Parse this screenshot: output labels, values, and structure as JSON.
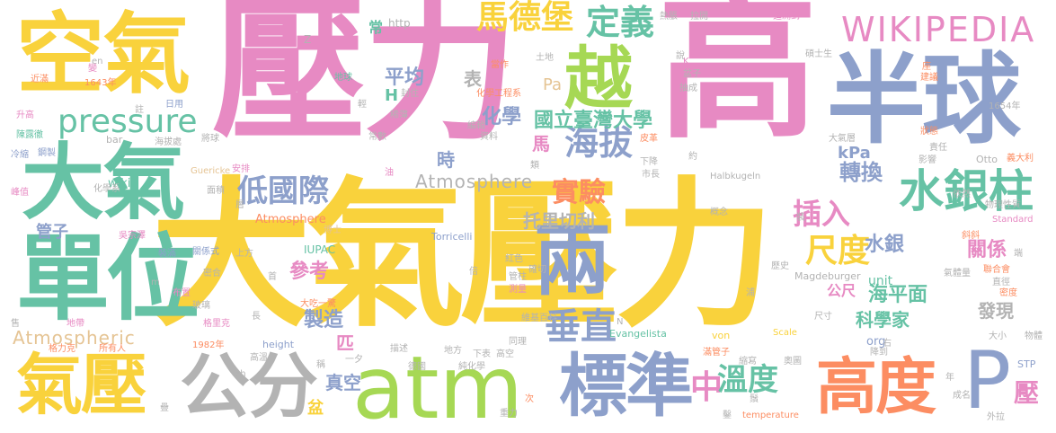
{
  "palette": {
    "yellow": "#f9d23c",
    "pink": "#e78ac3",
    "green": "#66c2a5",
    "blue": "#8da0cb",
    "gray": "#b3b3b3",
    "lime": "#a6d854",
    "orange": "#fc8d62",
    "tan": "#e5c494"
  },
  "words": {
    "w_daqiyali": "大氣壓力",
    "w_yali": "壓力",
    "w_gao": "高",
    "w_kongqi": "空氣",
    "w_banqiu": "半球",
    "w_yue": "越",
    "w_daqi": "大氣",
    "w_danwei": "單位",
    "w_qiya": "氣壓",
    "w_gongfen": "公分",
    "w_atm": "atm",
    "w_biaozhun": "標準",
    "w_gaodu": "高度",
    "w_P": "P",
    "w_liang": "兩",
    "w_shuiyinzhu": "水銀柱",
    "w_wikipedia": "WIKIPEDIA",
    "w_pressure": "pressure",
    "w_madebao": "馬德堡",
    "w_dingyi": "定義",
    "w_haiba": "海拔",
    "w_diguoji": "低國際",
    "w_chuizhi": "垂直",
    "w_wendu": "溫度",
    "w_zhong": "中",
    "w_chidu": "尺度",
    "w_shiyan": "實驗",
    "w_charu": "插入",
    "w_zhuanhuan": "轉換",
    "w_ntu": "國立臺灣大學",
    "w_huaxue": "化學",
    "w_pingjun": "平均",
    "w_atmos1": "Atmosphere",
    "w_atmos2": "Atmospheric",
    "w_atmos3": "Atmosphere",
    "w_torricelli": "托里切利",
    "w_cankao": "參考",
    "w_guanzi": "管子",
    "w_shuiyin": "水銀",
    "w_guanxi": "關係",
    "w_gongchi": "公尺",
    "w_haipingmian": "海平面",
    "w_kexuejia": "科學家",
    "w_faxian": "發現",
    "w_zhizao": "製造",
    "w_zhenkong": "真空",
    "w_ya": "壓",
    "w_kpa": "kPa",
    "w_pa": "Pa",
    "w_biao": "表",
    "w_shi": "時",
    "w_ma": "馬",
    "w_H": "H",
    "w_chang": "常",
    "w_http": "http",
    "w_unit": "unit",
    "w_org": "org",
    "w_pi": "匹",
    "w_pen": "盆",
    "w_iupac": "IUPAC",
    "w_torr": "Torricelli",
    "w_magd": "Magdeburger",
    "w_evang": "Evangelista",
    "w_height": "height",
    "w_temp": "temperature",
    "w_scale": "Scale",
    "w_von": "von",
    "w_halb": "Halbkugeln",
    "w_otto": "Otto",
    "w_guericke": "Guericke",
    "w_standard": "Standard",
    "w_stp": "STP",
    "w_wiki": "wiki",
    "w_bar": "bar",
    "w_z": "Z",
    "w_en": "en",
    "w_zh": "zh",
    "w_n": "N",
    "w_m": "m",
    "w_k": "K",
    "w_1643": "1643年",
    "w_1654": "1654年",
    "w_1982": "1982年",
    "s1": "近滿",
    "s2": "變",
    "s3": "升高",
    "s4": "陳露徹",
    "s5": "冷縮",
    "s6": "鋼製",
    "s7": "註",
    "s8": "日用",
    "s9": "海拔處",
    "s10": "將球",
    "s11": "化學系",
    "s12": "面積",
    "s13": "峰值",
    "s14": "安排",
    "s15": "上方",
    "s16": "吳宗澤",
    "s17": "裝滿",
    "s18": "關係式",
    "s19": "密合",
    "s20": "布置",
    "s21": "玻璃",
    "s22": "格里克",
    "s23": "所有人",
    "s24": "格力克",
    "s25": "地帶",
    "s26": "售",
    "s27": "長",
    "s28": "首",
    "s29": "大吃一驚",
    "s30": "博士",
    "s31": "層",
    "s32": "高溫",
    "s33": "稱",
    "s34": "一夕",
    "s35": "描述",
    "s36": "德國",
    "s37": "地方",
    "s38": "同理",
    "s39": "下表",
    "s40": "高空",
    "s41": "純化學",
    "s42": "維基百科",
    "s43": "紅色",
    "s44": "管柱",
    "s45": "測量",
    "s46": "倍",
    "s47": "確切",
    "s48": "滿管子",
    "s49": "縮寫",
    "s50": "奧圖",
    "s51": "降到",
    "s52": "次",
    "s53": "重力",
    "s54": "鬚",
    "s55": "常數",
    "s56": "稀薄",
    "s57": "編輯",
    "s58": "資料",
    "s59": "化學工程系",
    "s60": "當作",
    "s61": "封住",
    "s62": "地球",
    "s63": "土地",
    "s64": "輕",
    "s65": "油",
    "s66": "類",
    "s67": "皮革",
    "s68": "市長",
    "s69": "下降",
    "s70": "熱脹",
    "s71": "拉開",
    "s72": "說",
    "s73": "盆子",
    "s74": "抽成",
    "s75": "追溯到",
    "s76": "碩士生",
    "s77": "座",
    "s78": "建議",
    "s79": "狀態",
    "s80": "大氣層",
    "s81": "責任",
    "s82": "影響",
    "s83": "義大利",
    "s84": "約",
    "s85": "依然",
    "s86": "物理性質",
    "s87": "概念",
    "s88": "裝",
    "s89": "斜斜",
    "s90": "端",
    "s91": "歷史",
    "s92": "聯合會",
    "s93": "氣體量",
    "s94": "直徑",
    "s95": "密度",
    "s96": "浦",
    "s97": "尺寸",
    "s98": "大小",
    "s99": "物體",
    "s100": "右",
    "s101": "年",
    "s102": "成名",
    "s103": "外拉",
    "s104": "疊",
    "s105": "鑿"
  }
}
